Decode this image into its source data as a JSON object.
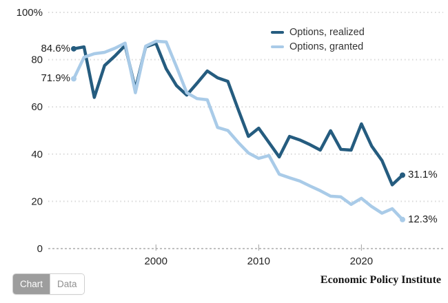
{
  "chart_data": {
    "type": "line",
    "title": "",
    "xlabel": "",
    "ylabel": "",
    "x": [
      1992,
      1993,
      1994,
      1995,
      1996,
      1997,
      1998,
      1999,
      2000,
      2001,
      2002,
      2003,
      2004,
      2005,
      2006,
      2007,
      2008,
      2009,
      2010,
      2011,
      2012,
      2013,
      2014,
      2015,
      2016,
      2017,
      2018,
      2019,
      2020,
      2021,
      2022,
      2023,
      2024
    ],
    "series": [
      {
        "name": "Options, realized",
        "color": "#255c7f",
        "start_label": "84.6%",
        "end_label": "31.1%",
        "values": [
          84.6,
          85.4,
          64.0,
          77.5,
          81.5,
          86.0,
          67.5,
          85.4,
          86.9,
          76.1,
          69.0,
          65.0,
          70.0,
          75.2,
          72.3,
          70.8,
          59.0,
          47.5,
          51.0,
          44.9,
          38.8,
          47.5,
          46.0,
          44.0,
          41.7,
          49.9,
          42.0,
          41.7,
          52.8,
          43.4,
          37.3,
          27.0,
          31.1
        ]
      },
      {
        "name": "Options, granted",
        "color": "#a9cbe8",
        "start_label": "71.9%",
        "end_label": "12.3%",
        "values": [
          71.9,
          81.0,
          82.5,
          83.1,
          84.8,
          87.0,
          66.0,
          85.7,
          87.8,
          87.5,
          77.0,
          66.0,
          63.5,
          63.0,
          51.3,
          50.0,
          45.0,
          40.5,
          38.2,
          39.4,
          31.5,
          30.0,
          28.6,
          26.5,
          24.5,
          22.2,
          21.9,
          18.7,
          21.3,
          17.8,
          15.0,
          16.9,
          12.3
        ]
      }
    ],
    "ylim": [
      0,
      100
    ],
    "ytick_values": [
      0,
      20,
      40,
      60,
      80,
      100
    ],
    "ytick_labels": [
      "0",
      "20",
      "40",
      "60",
      "80",
      "100%"
    ],
    "xtick_values": [
      2000,
      2010,
      2020
    ],
    "xtick_labels": [
      "2000",
      "2010",
      "2020"
    ],
    "grid": "dotted-horizontal",
    "legend_position": "top-right",
    "grid_color": "#d8d8d8",
    "axis_line_color": "#c0c0c0",
    "tick_color": "#a0a0a0"
  },
  "footer": {
    "toggle": {
      "chart_label": "Chart",
      "data_label": "Data",
      "active": "Chart"
    },
    "source": "Economic Policy Institute"
  }
}
